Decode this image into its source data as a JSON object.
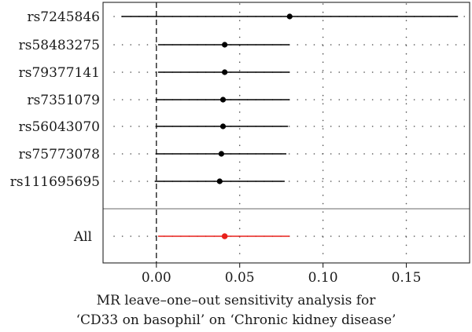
{
  "chart_data": {
    "type": "forest",
    "xlabel_lines": [
      "MR leave–one–out sensitivity analysis for",
      "‘CD33 on basophil’ on ‘Chronic kidney disease’"
    ],
    "xlim": [
      -0.032,
      0.188
    ],
    "x_ticks": [
      0.0,
      0.05,
      0.1,
      0.15
    ],
    "x_tick_labels": [
      "0.00",
      "0.05",
      "0.10",
      "0.15"
    ],
    "reference_line": 0.0,
    "grid": "dotted",
    "snps": [
      {
        "label": "rs7245846",
        "estimate": 0.08,
        "lower": -0.021,
        "upper": 0.181
      },
      {
        "label": "rs58483275",
        "estimate": 0.041,
        "lower": 0.001,
        "upper": 0.08
      },
      {
        "label": "rs79377141",
        "estimate": 0.041,
        "lower": 0.001,
        "upper": 0.08
      },
      {
        "label": "rs7351079",
        "estimate": 0.04,
        "lower": 0.0,
        "upper": 0.08
      },
      {
        "label": "rs56043070",
        "estimate": 0.04,
        "lower": 0.0,
        "upper": 0.079
      },
      {
        "label": "rs75773078",
        "estimate": 0.039,
        "lower": 0.0,
        "upper": 0.078
      },
      {
        "label": "rs111695695",
        "estimate": 0.038,
        "lower": -0.001,
        "upper": 0.077
      }
    ],
    "overall": {
      "label": "All",
      "estimate": 0.041,
      "lower": 0.001,
      "upper": 0.08
    },
    "colors": {
      "snp": "#000000",
      "overall": "#e8211b",
      "separator": "#9a9a9a",
      "grid": "#555555"
    }
  }
}
